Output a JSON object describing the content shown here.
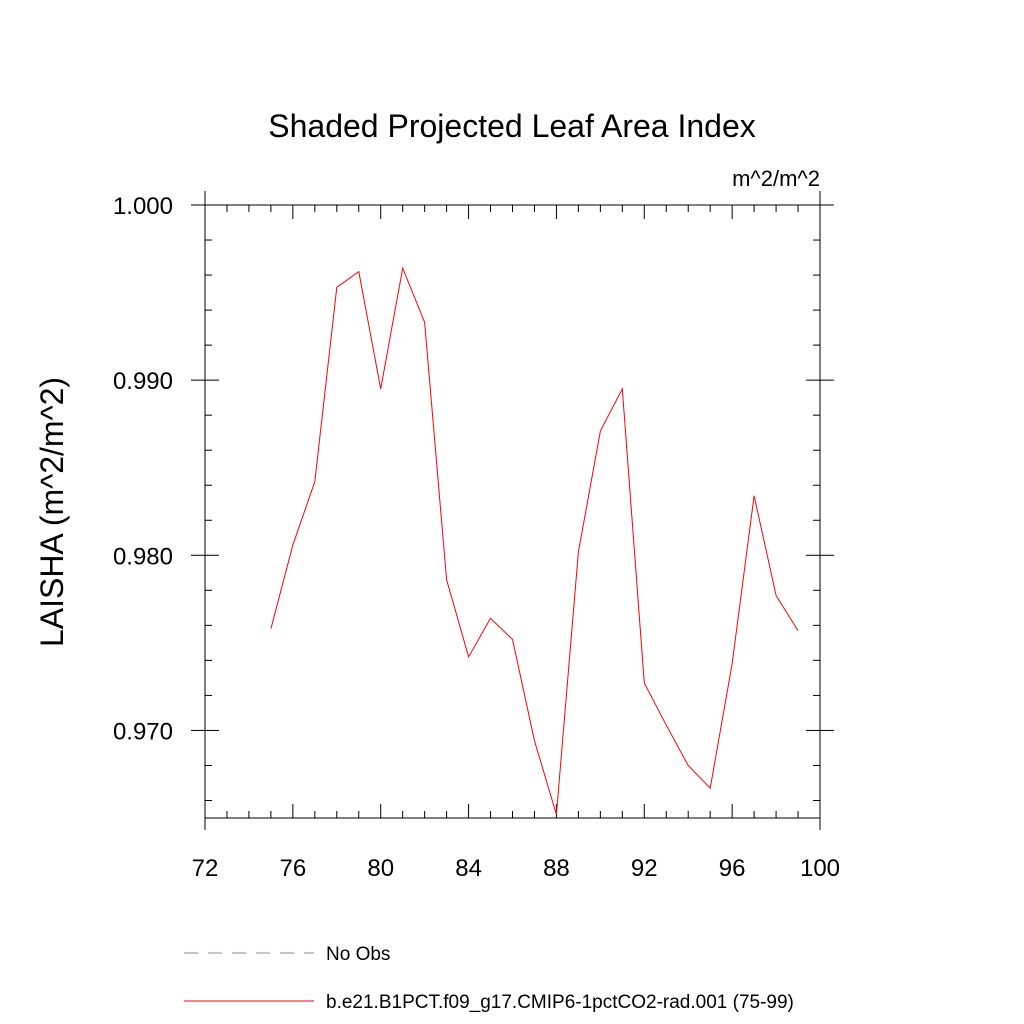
{
  "chart_data": {
    "type": "line",
    "title": "Shaded Projected Leaf Area Index",
    "units": "m^2/m^2",
    "ylabel": "LAISHA  (m^2/m^2)",
    "xlabel": "",
    "xlim": [
      72,
      100
    ],
    "ylim": [
      0.965,
      1.0
    ],
    "x_ticks": [
      72,
      76,
      80,
      84,
      88,
      92,
      96,
      100
    ],
    "x_tick_labels": [
      "72",
      "76",
      "80",
      "84",
      "88",
      "92",
      "96",
      "100"
    ],
    "y_ticks": [
      0.97,
      0.98,
      0.99,
      1.0
    ],
    "y_tick_labels": [
      "0.970",
      "0.980",
      "0.990",
      "1.000"
    ],
    "series": [
      {
        "name": "b.e21.B1PCT.f09_g17.CMIP6-1pctCO2-rad.001 (75-99)",
        "color": "#ff0000",
        "style": "solid",
        "x": [
          75,
          76,
          77,
          78,
          79,
          80,
          81,
          82,
          83,
          84,
          85,
          86,
          87,
          88,
          89,
          90,
          91,
          92,
          93,
          94,
          95,
          96,
          97,
          98,
          99
        ],
        "y": [
          0.9758,
          0.9806,
          0.9842,
          0.9953,
          0.9962,
          0.9895,
          0.9964,
          0.9933,
          0.9786,
          0.9742,
          0.9764,
          0.9752,
          0.9694,
          0.9652,
          0.9802,
          0.9871,
          0.9895,
          0.9727,
          0.9703,
          0.968,
          0.9667,
          0.9738,
          0.9834,
          0.9777,
          0.9757
        ]
      }
    ],
    "legend": [
      {
        "label": "No Obs",
        "color": "#8080c0",
        "style": "dashed"
      },
      {
        "label": "b.e21.B1PCT.f09_g17.CMIP6-1pctCO2-rad.001 (75-99)",
        "color": "#ff0000",
        "style": "solid"
      }
    ],
    "legend_position": "bottom",
    "grid": false
  }
}
